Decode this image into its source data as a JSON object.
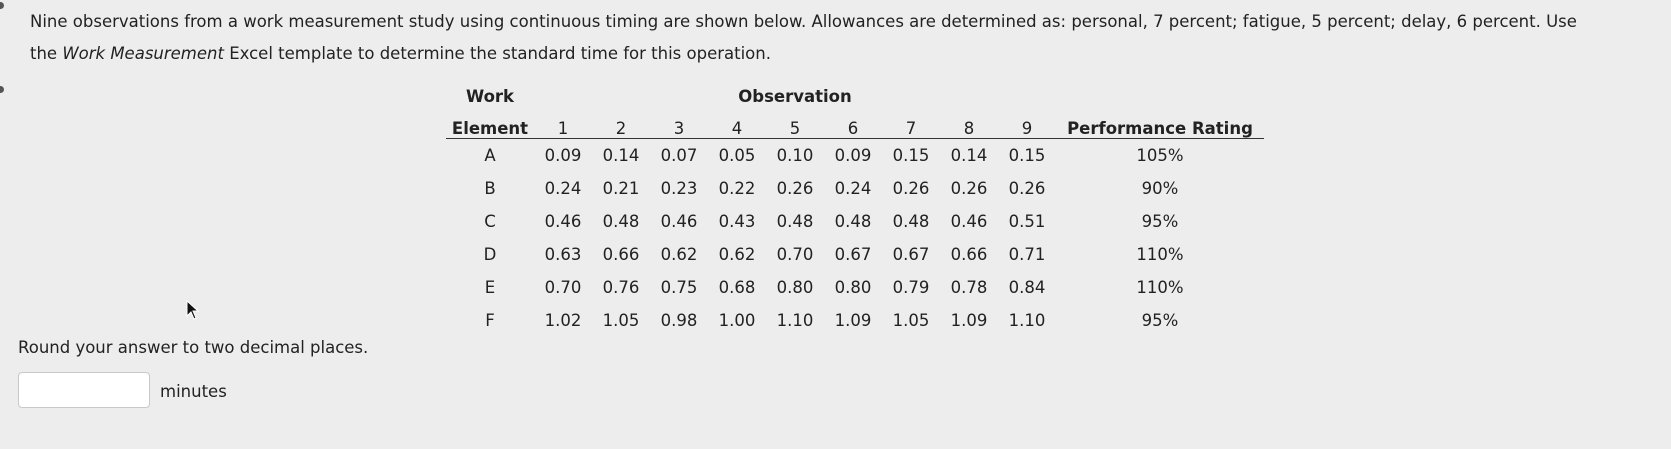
{
  "question": {
    "line1": "Nine observations from a work measurement study using continuous timing are shown below. Allowances are determined as: personal, 7 percent; fatigue, 5 percent; delay, 6 percent. Use",
    "line2_before": "the ",
    "line2_italic": "Work Measurement",
    "line2_after": " Excel template to determine the standard time for this operation."
  },
  "table": {
    "header_work": "Work",
    "header_element": "Element",
    "header_observation": "Observation",
    "header_performance": "Performance Rating",
    "obs_numbers": [
      "1",
      "2",
      "3",
      "4",
      "5",
      "6",
      "7",
      "8",
      "9"
    ],
    "rows": [
      {
        "element": "A",
        "values": [
          "0.09",
          "0.14",
          "0.07",
          "0.05",
          "0.10",
          "0.09",
          "0.15",
          "0.14",
          "0.15"
        ],
        "rating": "105%"
      },
      {
        "element": "B",
        "values": [
          "0.24",
          "0.21",
          "0.23",
          "0.22",
          "0.26",
          "0.24",
          "0.26",
          "0.26",
          "0.26"
        ],
        "rating": "90%"
      },
      {
        "element": "C",
        "values": [
          "0.46",
          "0.48",
          "0.46",
          "0.43",
          "0.48",
          "0.48",
          "0.48",
          "0.46",
          "0.51"
        ],
        "rating": "95%"
      },
      {
        "element": "D",
        "values": [
          "0.63",
          "0.66",
          "0.62",
          "0.62",
          "0.70",
          "0.67",
          "0.67",
          "0.66",
          "0.71"
        ],
        "rating": "110%"
      },
      {
        "element": "E",
        "values": [
          "0.70",
          "0.76",
          "0.75",
          "0.68",
          "0.80",
          "0.80",
          "0.79",
          "0.78",
          "0.84"
        ],
        "rating": "110%"
      },
      {
        "element": "F",
        "values": [
          "1.02",
          "1.05",
          "0.98",
          "1.00",
          "1.10",
          "1.09",
          "1.05",
          "1.09",
          "1.10"
        ],
        "rating": "95%"
      }
    ]
  },
  "answer": {
    "instruction": "Round your answer to two decimal places.",
    "value": "",
    "unit": "minutes"
  },
  "icons": {
    "cursor": "mouse-pointer-icon"
  }
}
